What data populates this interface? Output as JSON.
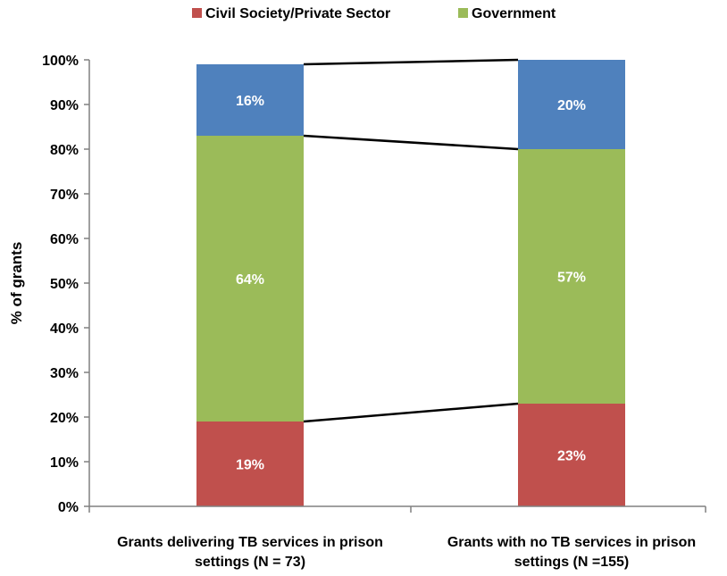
{
  "chart_data": {
    "type": "bar",
    "stacked": true,
    "ylabel": "% of grants",
    "xlabel": "",
    "ylim": [
      0,
      100
    ],
    "yticks": [
      "0%",
      "10%",
      "20%",
      "30%",
      "40%",
      "50%",
      "60%",
      "70%",
      "80%",
      "90%",
      "100%"
    ],
    "categories": [
      [
        "Grants delivering TB services in prison",
        "settings (N = 73)"
      ],
      [
        "Grants with no TB services in prison",
        "settings (N =155)"
      ]
    ],
    "series": [
      {
        "name": "Civil Society/Private Sector",
        "color": "#c0504d",
        "values": [
          19,
          23
        ],
        "labels": [
          "19%",
          "23%"
        ]
      },
      {
        "name": "Government",
        "color": "#9bbb59",
        "values": [
          64,
          57
        ],
        "labels": [
          "64%",
          "57%"
        ]
      },
      {
        "name": "",
        "color": "#4f81bd",
        "values": [
          16,
          20
        ],
        "labels": [
          "16%",
          "20%"
        ]
      }
    ],
    "legend": {
      "position": "top",
      "entries": [
        "Civil Society/Private Sector",
        "Government"
      ]
    },
    "connector_lines": true,
    "grid": false
  }
}
